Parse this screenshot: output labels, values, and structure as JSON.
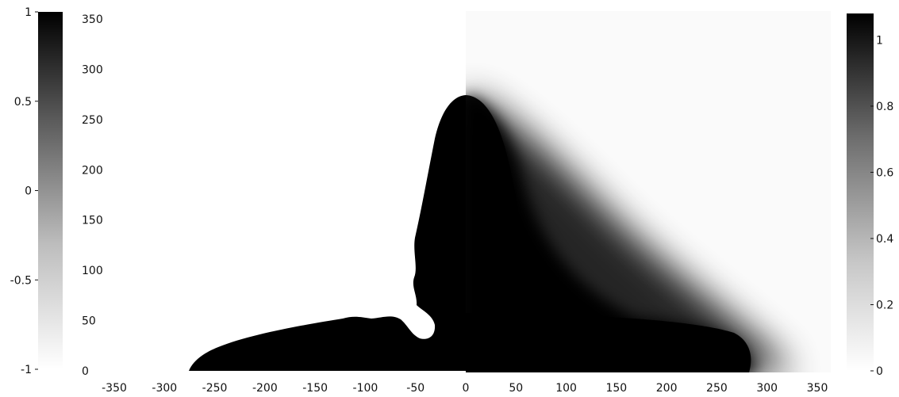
{
  "chart_data": [
    {
      "type": "heatmap",
      "panel": "left",
      "colormap": "white-to-black",
      "x_ticks": [
        "-350",
        "-300",
        "-250",
        "-200",
        "-150",
        "-100",
        "-50"
      ],
      "y_ticks": [
        "0",
        "50",
        "100",
        "150",
        "200",
        "250",
        "300",
        "350"
      ],
      "xlim": [
        -350,
        0
      ],
      "ylim": [
        0,
        350
      ],
      "colorbar": {
        "range": [
          -1,
          1
        ],
        "ticks": [
          "-1",
          "-0.5",
          "0",
          "0.5",
          "1"
        ]
      },
      "grid": false
    },
    {
      "type": "heatmap",
      "panel": "right",
      "colormap": "white-to-black",
      "x_ticks": [
        "0",
        "50",
        "100",
        "150",
        "200",
        "250",
        "300",
        "350"
      ],
      "xlim": [
        0,
        350
      ],
      "ylim": [
        0,
        350
      ],
      "colorbar": {
        "range": [
          0,
          1.08
        ],
        "ticks": [
          "0",
          "0.2",
          "0.4",
          "0.6",
          "0.8",
          "1"
        ]
      },
      "grid": false
    }
  ],
  "colors": {
    "background": "#ffffff",
    "ink": "#000000",
    "text": "#111111"
  }
}
